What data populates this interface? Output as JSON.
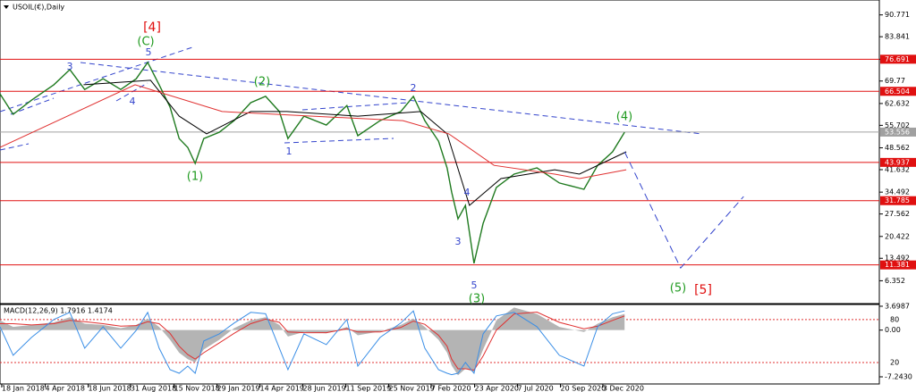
{
  "chart_data": [
    {
      "type": "line",
      "title": "USOIL(€),Daily",
      "xlim": [
        "2018-01-15",
        "2022-03-31"
      ],
      "xticks": [
        {
          "value": "2018-01-18",
          "label": "18 Jan 2018"
        },
        {
          "value": "2018-04-04",
          "label": "4 Apr 2018"
        },
        {
          "value": "2018-06-18",
          "label": "18 Jun 2018"
        },
        {
          "value": "2018-08-31",
          "label": "31 Aug 2018"
        },
        {
          "value": "2018-11-15",
          "label": "15 Nov 2018"
        },
        {
          "value": "2019-01-29",
          "label": "29 Jan 2019"
        },
        {
          "value": "2019-04-14",
          "label": "14 Apr 2019"
        },
        {
          "value": "2019-06-28",
          "label": "28 Jun 2019"
        },
        {
          "value": "2019-09-11",
          "label": "11 Sep 2019"
        },
        {
          "value": "2019-11-25",
          "label": "25 Nov 2019"
        },
        {
          "value": "2020-02-07",
          "label": "7 Feb 2020"
        },
        {
          "value": "2020-04-23",
          "label": "23 Apr 2020"
        },
        {
          "value": "2020-07-07",
          "label": "7 Jul 2020"
        },
        {
          "value": "2020-09-20",
          "label": "20 Sep 2020"
        },
        {
          "value": "2020-12-03",
          "label": "3 Dec 2020"
        }
      ],
      "ylim": [
        -0.9,
        95.5
      ],
      "yticks": [
        90.771,
        83.841,
        76.691,
        69.77,
        62.632,
        55.702,
        48.562,
        41.632,
        34.492,
        27.562,
        20.422,
        13.492,
        6.352
      ],
      "levels": [
        {
          "value": 76.691,
          "color": "#e01010"
        },
        {
          "value": 66.504,
          "color": "#e01010"
        },
        {
          "value": 53.556,
          "color": "#a0a0a0"
        },
        {
          "value": 43.937,
          "color": "#e01010"
        },
        {
          "value": 31.785,
          "color": "#e01010"
        },
        {
          "value": 11.381,
          "color": "#e01010"
        }
      ],
      "series": [
        {
          "color": "#1f7a1f",
          "x": [
            "2018-01-15",
            "2018-02-07",
            "2018-03-11",
            "2018-04-19",
            "2018-05-17",
            "2018-06-12",
            "2018-07-14",
            "2018-08-14",
            "2018-09-10",
            "2018-09-30",
            "2018-10-20",
            "2018-11-08",
            "2018-11-24",
            "2018-12-09",
            "2018-12-22",
            "2019-01-06",
            "2019-02-02",
            "2019-02-28",
            "2019-03-29",
            "2019-04-24",
            "2019-05-18",
            "2019-06-02",
            "2019-06-30",
            "2019-08-08",
            "2019-09-13",
            "2019-10-02",
            "2019-11-10",
            "2019-12-16",
            "2020-01-07",
            "2020-01-27",
            "2020-02-20",
            "2020-03-06",
            "2020-03-14",
            "2020-03-25",
            "2020-04-07",
            "2020-04-22",
            "2020-05-08",
            "2020-05-31",
            "2020-07-01",
            "2020-08-10",
            "2020-09-18",
            "2020-10-31",
            "2020-11-24",
            "2020-12-20",
            "2021-01-10"
          ],
          "values": [
            65.7,
            59.2,
            63.7,
            68.6,
            73.4,
            67.1,
            70.5,
            67.1,
            70.5,
            75.7,
            68.6,
            61.5,
            51.5,
            48.7,
            43.6,
            51.5,
            53.5,
            57.2,
            62.9,
            64.9,
            60.1,
            51.5,
            58.6,
            55.8,
            62.0,
            52.4,
            57.2,
            60.1,
            64.9,
            57.2,
            50.7,
            42.2,
            34.5,
            26.0,
            30.3,
            11.9,
            24.6,
            36.0,
            40.2,
            42.2,
            37.4,
            35.4,
            43.0,
            47.3,
            53.5
          ]
        },
        {
          "color": "#000000",
          "x": [
            "2018-06-10",
            "2018-10-05",
            "2018-11-24",
            "2019-01-11",
            "2019-03-29",
            "2019-05-31",
            "2019-10-02",
            "2020-01-20",
            "2020-03-06",
            "2020-04-14",
            "2020-06-08",
            "2020-09-10",
            "2020-10-23",
            "2021-01-13"
          ],
          "values": [
            68.6,
            70.0,
            58.6,
            53.0,
            60.1,
            60.1,
            58.6,
            60.1,
            53.0,
            30.3,
            38.8,
            41.6,
            40.2,
            47.3
          ]
        },
        {
          "color": "#e03030",
          "x": [
            "2018-01-15",
            "2018-09-08",
            "2019-02-07",
            "2019-07-15",
            "2019-12-20",
            "2020-03-09",
            "2020-05-27",
            "2020-09-10",
            "2020-10-23",
            "2021-01-13"
          ],
          "values": [
            48.7,
            68.6,
            60.1,
            58.6,
            57.2,
            53.0,
            43.0,
            40.2,
            38.8,
            41.6
          ]
        },
        {
          "color": "#3344cc",
          "dash": true,
          "x": [
            "2021-01-10",
            "2021-04-18",
            "2021-08-06"
          ],
          "values": [
            47.3,
            10.4,
            33.1
          ]
        }
      ],
      "annotations": [
        {
          "text": "[4]",
          "color": "#e01010"
        },
        {
          "text": "(C)",
          "color": "#1f9a1f"
        },
        {
          "text": "5",
          "color": "#3344cc"
        },
        {
          "text": "3",
          "color": "#3344cc"
        },
        {
          "text": "4",
          "color": "#3344cc"
        },
        {
          "text": "(2)",
          "color": "#1f9a1f"
        },
        {
          "text": "2",
          "color": "#3344cc"
        },
        {
          "text": "1",
          "color": "#3344cc"
        },
        {
          "text": "(1)",
          "color": "#1f9a1f"
        },
        {
          "text": "4",
          "color": "#3344cc"
        },
        {
          "text": "3",
          "color": "#3344cc"
        },
        {
          "text": "5",
          "color": "#3344cc"
        },
        {
          "text": "(3)",
          "color": "#1f9a1f"
        },
        {
          "text": "(4)",
          "color": "#1f9a1f"
        },
        {
          "text": "(5)",
          "color": "#1f9a1f"
        },
        {
          "text": "[5]",
          "color": "#e01010"
        }
      ]
    },
    {
      "type": "macd",
      "title": "MACD(12,26,9) 1.7916 1.4174",
      "ylim": [
        -8.35,
        3.97
      ],
      "yticks": [
        {
          "value": 3.6987,
          "label": "3.6987"
        },
        {
          "value": 0,
          "label": "0.00"
        },
        {
          "value": -7.243,
          "label": "-7.2430"
        }
      ],
      "y2lim": [
        -10,
        101
      ],
      "y2ticks": [
        80,
        20
      ],
      "x": [
        "2018-01-15",
        "2018-02-07",
        "2018-03-11",
        "2018-04-19",
        "2018-05-17",
        "2018-06-12",
        "2018-07-14",
        "2018-08-14",
        "2018-09-10",
        "2018-09-30",
        "2018-10-20",
        "2018-11-08",
        "2018-11-24",
        "2018-12-09",
        "2018-12-22",
        "2019-01-06",
        "2019-02-02",
        "2019-02-28",
        "2019-03-29",
        "2019-04-24",
        "2019-05-18",
        "2019-06-02",
        "2019-06-30",
        "2019-08-08",
        "2019-09-13",
        "2019-10-02",
        "2019-11-10",
        "2019-12-16",
        "2020-01-07",
        "2020-01-27",
        "2020-02-20",
        "2020-03-06",
        "2020-03-14",
        "2020-03-25",
        "2020-04-07",
        "2020-04-22",
        "2020-05-08",
        "2020-05-31",
        "2020-07-01",
        "2020-08-10",
        "2020-09-18",
        "2020-10-31",
        "2020-11-24",
        "2020-12-20",
        "2021-01-10"
      ],
      "series": [
        {
          "color": "#b4b4b4",
          "area": true,
          "values": [
            1.5,
            0.5,
            0.8,
            1.2,
            2.0,
            1.0,
            0.8,
            0.3,
            0.8,
            1.8,
            0.5,
            -1.5,
            -3.5,
            -4.5,
            -5.0,
            -3.0,
            -1.5,
            0.3,
            1.5,
            2.0,
            0.8,
            -1.0,
            -0.3,
            -0.5,
            0.5,
            -0.8,
            -0.2,
            0.8,
            1.8,
            0.5,
            -1.5,
            -3.5,
            -5.5,
            -7.0,
            -6.0,
            -6.5,
            -3.0,
            1.5,
            3.5,
            2.5,
            0.5,
            -0.3,
            1.0,
            2.0,
            2.5
          ]
        },
        {
          "color": "#e03030",
          "values": [
            1.0,
            1.0,
            0.8,
            1.0,
            1.5,
            1.3,
            1.0,
            0.6,
            0.7,
            1.3,
            1.0,
            -0.5,
            -2.5,
            -3.8,
            -4.5,
            -3.5,
            -2.0,
            -0.5,
            1.0,
            1.7,
            1.2,
            -0.3,
            -0.4,
            -0.4,
            0.2,
            -0.3,
            -0.3,
            0.4,
            1.4,
            0.9,
            -0.8,
            -2.5,
            -4.5,
            -6.0,
            -6.0,
            -6.2,
            -4.0,
            0,
            2.5,
            2.8,
            1.2,
            0.2,
            0.6,
            1.5,
            2.2
          ]
        },
        {
          "color": "#3a8ee6",
          "axis": "y2",
          "values": [
            70,
            30,
            55,
            80,
            90,
            40,
            70,
            40,
            65,
            90,
            40,
            10,
            5,
            15,
            5,
            50,
            60,
            75,
            90,
            88,
            40,
            10,
            60,
            45,
            80,
            15,
            55,
            75,
            92,
            40,
            10,
            5,
            3,
            5,
            20,
            5,
            60,
            85,
            90,
            70,
            30,
            15,
            70,
            88,
            92
          ]
        }
      ]
    }
  ]
}
